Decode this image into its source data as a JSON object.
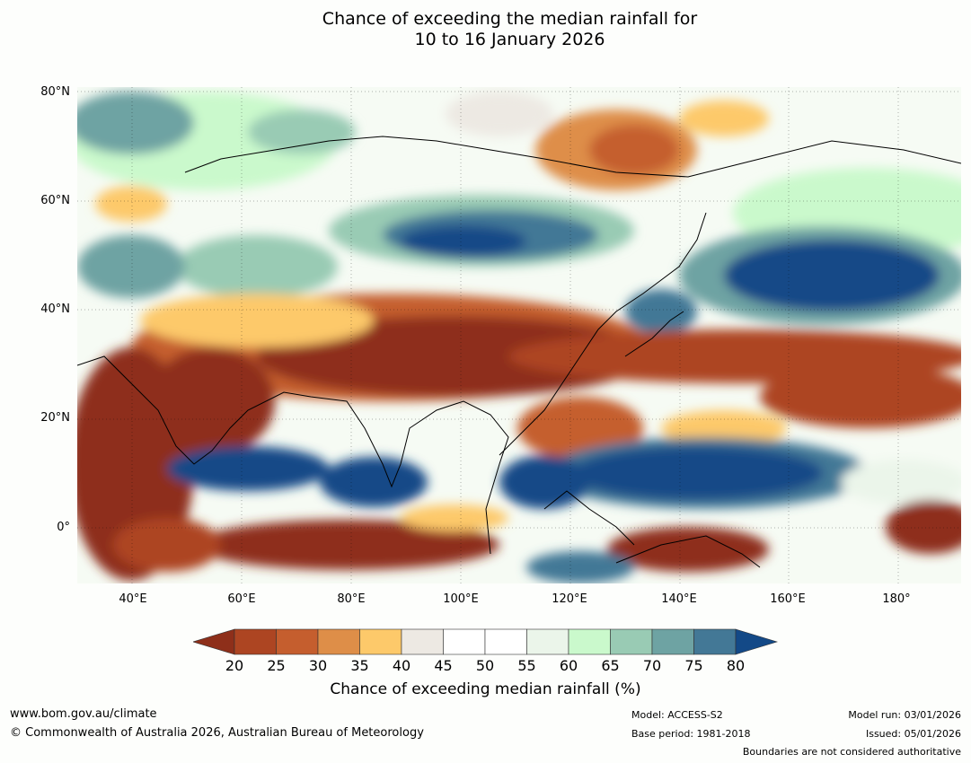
{
  "title": {
    "line1": "Chance of exceeding the median rainfall for",
    "line2": "10 to 16 January 2026"
  },
  "axes": {
    "lat_labels": [
      "80°N",
      "60°N",
      "40°N",
      "20°N",
      "0°"
    ],
    "lon_labels": [
      "40°E",
      "60°E",
      "80°E",
      "100°E",
      "120°E",
      "140°E",
      "160°E",
      "180°"
    ]
  },
  "colorbar": {
    "ticks": [
      "20",
      "25",
      "30",
      "35",
      "40",
      "45",
      "50",
      "55",
      "60",
      "65",
      "70",
      "75",
      "80"
    ],
    "colors": [
      "#8e2f1a",
      "#ad4522",
      "#c55e2e",
      "#de8e48",
      "#fdc96a",
      "#ede9e3",
      "#ffffff",
      "#ffffff",
      "#ebf5ea",
      "#caf9cc",
      "#99cbb4",
      "#6ea3a3",
      "#437896",
      "#134987"
    ],
    "label": "Chance of exceeding median rainfall (%)"
  },
  "footer": {
    "website": "www.bom.gov.au/climate",
    "copyright": "© Commonwealth of Australia 2026, Australian Bureau of Meteorology",
    "model": "Model: ACCESS-S2",
    "base_period": "Base period: 1981-2018",
    "model_run": "Model run: 03/01/2026",
    "issued": "Issued: 05/01/2026",
    "disclaimer": "Boundaries are not considered authoritative"
  }
}
